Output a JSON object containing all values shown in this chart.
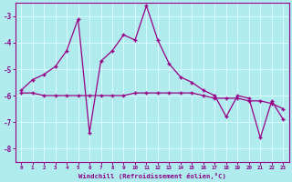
{
  "line1_x": [
    0,
    1,
    2,
    3,
    4,
    5,
    6,
    7,
    8,
    9,
    10,
    11,
    12,
    13,
    14,
    15,
    16,
    17,
    18,
    19,
    20,
    21,
    22,
    23
  ],
  "line1_y": [
    -5.9,
    -5.9,
    -6.0,
    -6.0,
    -6.0,
    -6.0,
    -6.0,
    -6.0,
    -6.0,
    -6.0,
    -5.9,
    -5.9,
    -5.9,
    -5.9,
    -5.9,
    -5.9,
    -6.0,
    -6.1,
    -6.1,
    -6.1,
    -6.2,
    -6.2,
    -6.3,
    -6.5
  ],
  "line2_x": [
    0,
    1,
    2,
    3,
    4,
    5,
    6,
    7,
    8,
    9,
    10,
    11,
    12,
    13,
    14,
    15,
    16,
    17,
    18,
    19,
    20,
    21,
    22,
    23
  ],
  "line2_y": [
    -5.8,
    -5.4,
    -5.2,
    -4.9,
    -4.3,
    -3.1,
    -7.4,
    -4.7,
    -4.3,
    -3.7,
    -3.9,
    -2.6,
    -3.9,
    -4.8,
    -5.3,
    -5.5,
    -5.8,
    -6.0,
    -6.8,
    -6.0,
    -6.1,
    -7.6,
    -6.2,
    -6.9
  ],
  "xlabel": "Windchill (Refroidissement éolien,°C)",
  "xlim": [
    -0.5,
    23.5
  ],
  "ylim": [
    -8.5,
    -2.5
  ],
  "yticks": [
    -8,
    -7,
    -6,
    -5,
    -4,
    -3
  ],
  "xticks": [
    0,
    1,
    2,
    3,
    4,
    5,
    6,
    7,
    8,
    9,
    10,
    11,
    12,
    13,
    14,
    15,
    16,
    17,
    18,
    19,
    20,
    21,
    22,
    23
  ],
  "bg_color": "#b0eced",
  "grid_color": "#dfffff",
  "line_color": "#990088",
  "tick_color": "#880088",
  "label_color": "#880088"
}
